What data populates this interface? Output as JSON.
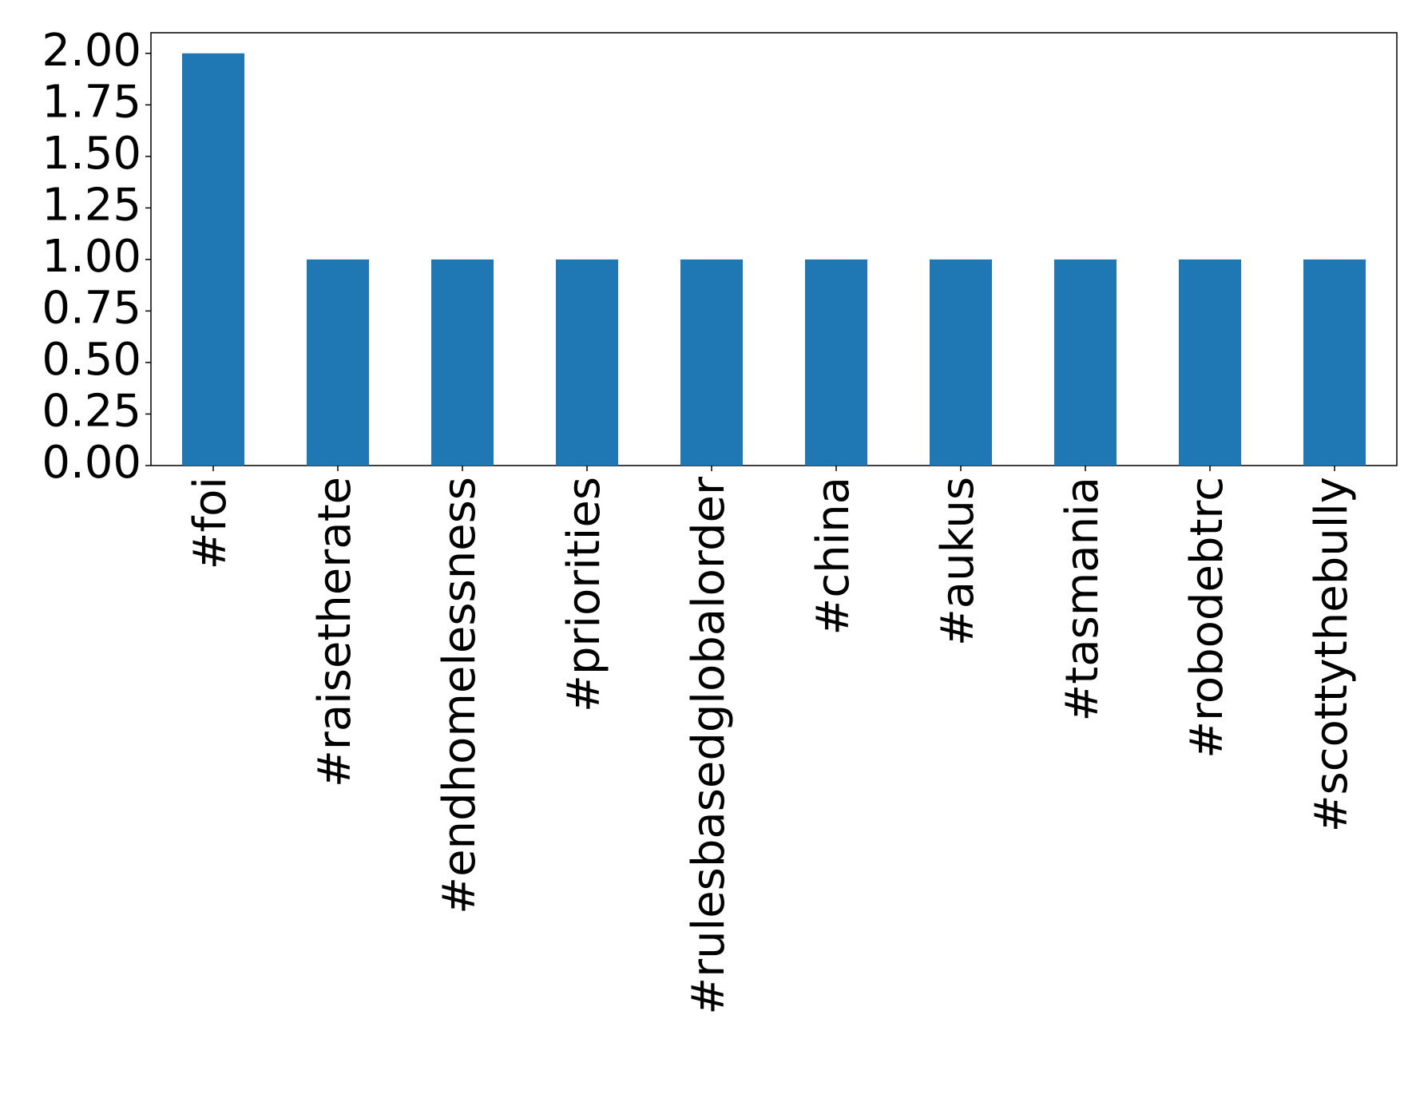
{
  "chart_data": {
    "type": "bar",
    "categories": [
      "#foi",
      "#raisetherate",
      "#endhomelessness",
      "#priorities",
      "#rulesbasedglobalorder",
      "#china",
      "#aukus",
      "#tasmania",
      "#robodebtrc",
      "#scottythebully"
    ],
    "values": [
      2,
      1,
      1,
      1,
      1,
      1,
      1,
      1,
      1,
      1
    ],
    "color": "#1f77b4",
    "ylim": [
      0,
      2.1
    ],
    "yticks": [
      {
        "value": 0,
        "label": "0.00"
      },
      {
        "value": 0.25,
        "label": "0.25"
      },
      {
        "value": 0.5,
        "label": "0.50"
      },
      {
        "value": 0.75,
        "label": "0.75"
      },
      {
        "value": 1,
        "label": "1.00"
      },
      {
        "value": 1.25,
        "label": "1.25"
      },
      {
        "value": 1.5,
        "label": "1.50"
      },
      {
        "value": 1.75,
        "label": "1.75"
      },
      {
        "value": 2,
        "label": "2.00"
      }
    ],
    "grid": false
  }
}
